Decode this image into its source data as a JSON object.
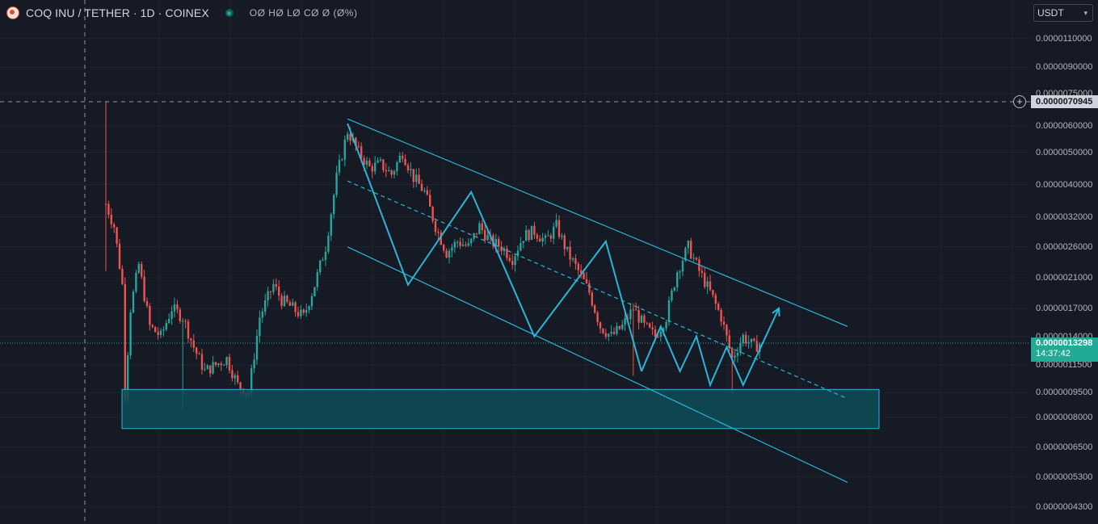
{
  "header": {
    "symbol": "COQ INU / TETHER · 1D · COINEX",
    "ohlc": "OØ HØ LØ CØ Ø (Ø%)",
    "logo_icon": "coq-inu-logo",
    "status_icon": "market-status-dot"
  },
  "currency": {
    "label": "USDT",
    "caret_icon": "chevron-down-icon"
  },
  "price_axis": {
    "labels": [
      "0.0000110000",
      "0.0000090000",
      "0.0000075000",
      "0.0000060000",
      "0.0000050000",
      "0.0000040000",
      "0.0000032000",
      "0.0000026000",
      "0.0000021000",
      "0.0000017000",
      "0.0000014000",
      "0.0000011500",
      "0.0000009500",
      "0.0000008000",
      "0.0000006500",
      "0.0000005300",
      "0.0000004300"
    ],
    "crosshair_price": "0.0000070945",
    "last_price": "0.0000013298",
    "countdown": "14:37:42"
  },
  "colors": {
    "background": "#161a25",
    "up": "#26a69a",
    "down": "#ef5350",
    "drawing": "#29b6d8",
    "zone_fill": "#0e4e58",
    "price_badge": "#22ab94"
  },
  "chart_data": {
    "type": "candlestick",
    "title": "COQ INU / TETHER · 1D · COINEX",
    "scale": "log",
    "ylim": [
      4e-07,
      1.2e-05
    ],
    "y_ticks": [
      1.1e-05,
      9e-06,
      7.5e-06,
      6e-06,
      5e-06,
      4e-06,
      3.2e-06,
      2.6e-06,
      2.1e-06,
      1.7e-06,
      1.4e-06,
      1.15e-06,
      9.5e-07,
      8e-07,
      6.5e-07,
      5.3e-07,
      4.3e-07
    ],
    "last_price": 1.3298e-06,
    "crosshair_price": 7.0945e-06,
    "close_path": [
      [
        0,
        3.5e-06
      ],
      [
        3,
        3e-06
      ],
      [
        6,
        2e-06
      ],
      [
        7,
        9.5e-07
      ],
      [
        9,
        1.7e-06
      ],
      [
        12,
        2.3e-06
      ],
      [
        16,
        1.5e-06
      ],
      [
        20,
        1.4e-06
      ],
      [
        24,
        1.7e-06
      ],
      [
        28,
        1.6e-06
      ],
      [
        32,
        1.3e-06
      ],
      [
        36,
        1.1e-06
      ],
      [
        40,
        1.15e-06
      ],
      [
        44,
        1.2e-06
      ],
      [
        48,
        1e-06
      ],
      [
        52,
        9.5e-07
      ],
      [
        56,
        1.6e-06
      ],
      [
        61,
        2e-06
      ],
      [
        64,
        1.8e-06
      ],
      [
        68,
        1.7e-06
      ],
      [
        72,
        1.6e-06
      ],
      [
        76,
        2e-06
      ],
      [
        80,
        2.6e-06
      ],
      [
        84,
        4.2e-06
      ],
      [
        88,
        5.8e-06
      ],
      [
        92,
        5e-06
      ],
      [
        96,
        4.5e-06
      ],
      [
        100,
        4.6e-06
      ],
      [
        104,
        4.3e-06
      ],
      [
        108,
        5e-06
      ],
      [
        112,
        4.2e-06
      ],
      [
        116,
        3.8e-06
      ],
      [
        120,
        3e-06
      ],
      [
        124,
        2.5e-06
      ],
      [
        128,
        2.7e-06
      ],
      [
        132,
        2.6e-06
      ],
      [
        136,
        3e-06
      ],
      [
        140,
        2.7e-06
      ],
      [
        144,
        2.6e-06
      ],
      [
        148,
        2.4e-06
      ],
      [
        152,
        2.8e-06
      ],
      [
        156,
        2.9e-06
      ],
      [
        160,
        2.7e-06
      ],
      [
        164,
        3e-06
      ],
      [
        168,
        2.5e-06
      ],
      [
        172,
        2.2e-06
      ],
      [
        176,
        1.9e-06
      ],
      [
        180,
        1.5e-06
      ],
      [
        184,
        1.4e-06
      ],
      [
        188,
        1.5e-06
      ],
      [
        192,
        1.7e-06
      ],
      [
        196,
        1.5e-06
      ],
      [
        200,
        1.4e-06
      ],
      [
        204,
        1.6e-06
      ],
      [
        208,
        2.2e-06
      ],
      [
        212,
        2.6e-06
      ],
      [
        216,
        2.2e-06
      ],
      [
        220,
        1.9e-06
      ],
      [
        224,
        1.6e-06
      ],
      [
        228,
        1.2e-06
      ],
      [
        232,
        1.4e-06
      ],
      [
        236,
        1.3e-06
      ],
      [
        238,
        1.3298e-06
      ]
    ],
    "wick_extremes": {
      "high": 7.1e-06,
      "low": 8.2e-07
    },
    "annotations": {
      "channel_upper": [
        [
          88,
          6.3e-06
        ],
        [
          270,
          1.5e-06
        ]
      ],
      "channel_lower": [
        [
          88,
          2.6e-06
        ],
        [
          270,
          5.1e-07
        ]
      ],
      "channel_mid": [
        [
          88,
          4.1e-06
        ],
        [
          270,
          9.1e-07
        ]
      ],
      "zigzag": [
        [
          88,
          6.1e-06
        ],
        [
          110,
          2e-06
        ],
        [
          133,
          3.8e-06
        ],
        [
          156,
          1.4e-06
        ],
        [
          182,
          2.7e-06
        ],
        [
          195,
          1.1e-06
        ]
      ],
      "projection": [
        [
          195,
          1.1e-06
        ],
        [
          202,
          1.5e-06
        ],
        [
          209,
          1.1e-06
        ],
        [
          215,
          1.4e-06
        ],
        [
          220,
          1e-06
        ],
        [
          226,
          1.3e-06
        ],
        [
          232,
          1e-06
        ],
        [
          245,
          1.7e-06
        ]
      ],
      "support_zone": [
        7.4e-07,
        9.7e-07
      ]
    }
  }
}
